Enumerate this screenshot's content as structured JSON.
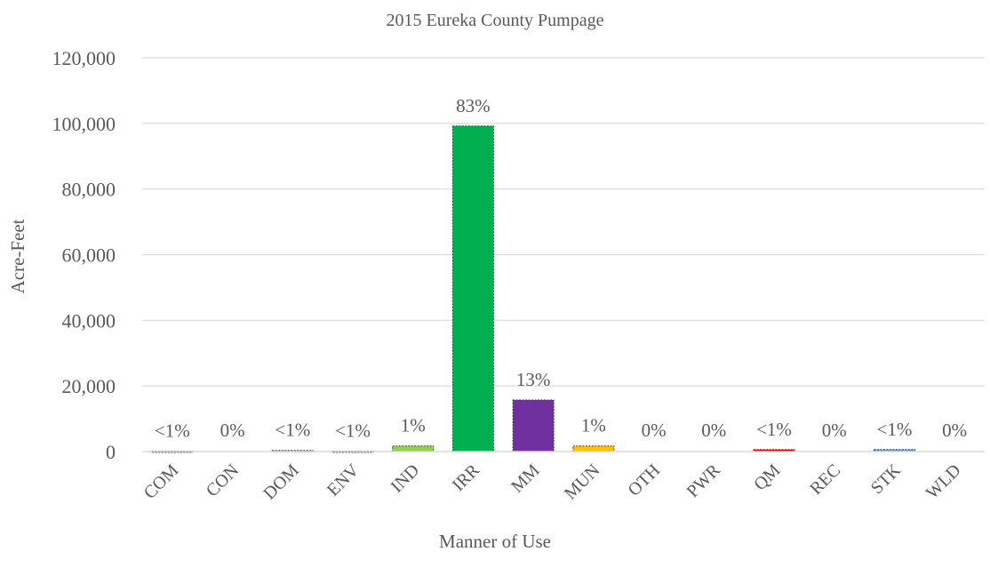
{
  "chart_data": {
    "type": "bar",
    "title": "2015 Eureka County Pumpage",
    "xlabel": "Manner of  Use",
    "ylabel": "Acre-Feet",
    "ylim": [
      0,
      120000
    ],
    "yticks": [
      "0",
      "20,000",
      "40,000",
      "60,000",
      "80,000",
      "100,000",
      "120,000"
    ],
    "ytick_values": [
      0,
      20000,
      40000,
      60000,
      80000,
      100000,
      120000
    ],
    "grid": true,
    "legend": "none",
    "categories": [
      "COM",
      "CON",
      "DOM",
      "ENV",
      "IND",
      "IRR",
      "MM",
      "MUN",
      "OTH",
      "PWR",
      "QM",
      "REC",
      "STK",
      "WLD"
    ],
    "values": [
      150,
      0,
      350,
      150,
      1700,
      99200,
      15700,
      1700,
      0,
      0,
      600,
      0,
      600,
      0
    ],
    "data_labels": [
      "<1%",
      "0%",
      "<1%",
      "<1%",
      "1%",
      "83%",
      "13%",
      "1%",
      "0%",
      "0%",
      "<1%",
      "0%",
      "<1%",
      "0%"
    ],
    "colors": [
      "#4472C4",
      "#ED7D31",
      "#A5A5A5",
      "#5B9BD5",
      "#92D050",
      "#00B050",
      "#7030A0",
      "#FFC000",
      "#264478",
      "#9E480E",
      "#FF0000",
      "#70AD47",
      "#5B9BD5",
      "#43682B"
    ]
  }
}
